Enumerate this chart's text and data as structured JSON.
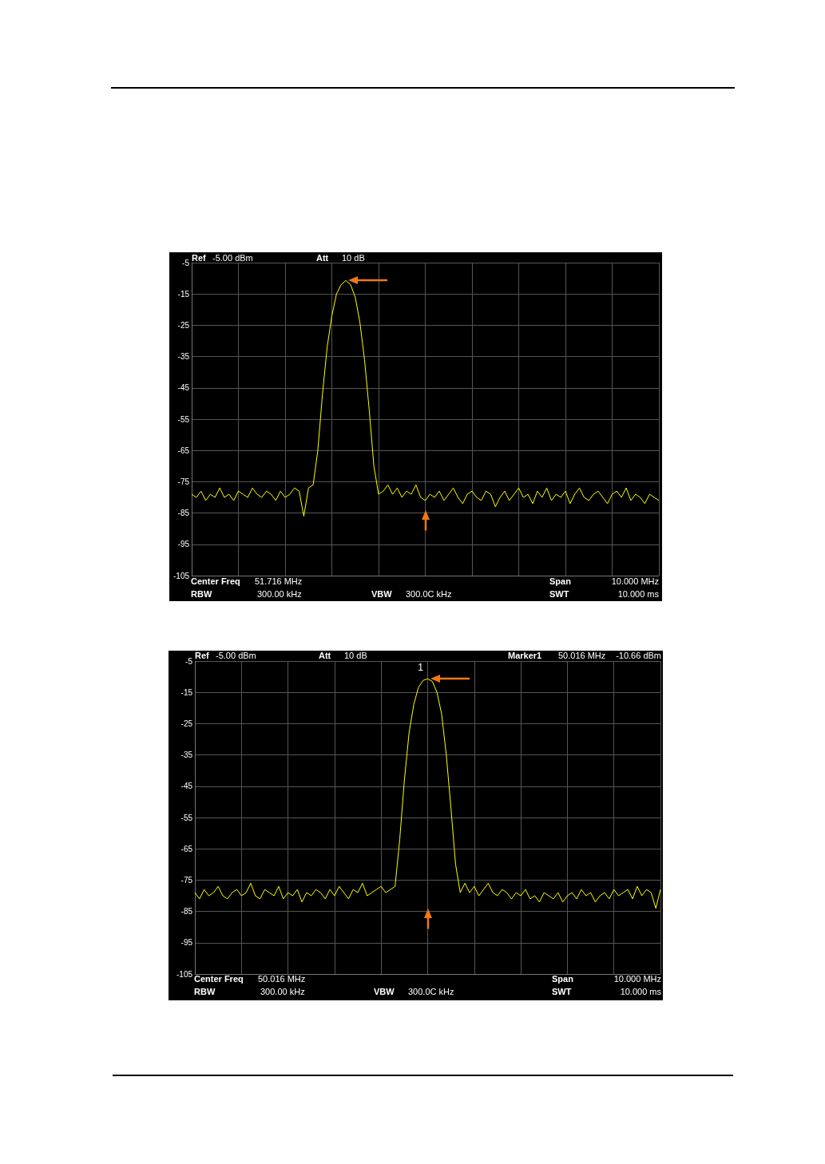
{
  "chart_data": [
    {
      "type": "line",
      "categories": [
        null,
        null,
        null,
        null,
        null,
        null,
        null,
        null,
        null,
        null,
        null,
        null,
        null,
        null,
        null,
        null,
        null,
        null,
        null,
        null,
        null,
        null,
        null,
        null,
        null,
        null,
        null,
        null,
        null,
        null,
        null,
        null,
        null,
        null,
        null,
        null,
        null,
        null,
        null,
        null,
        null,
        null,
        null,
        null,
        null,
        null,
        null,
        null,
        null,
        null,
        null,
        null,
        null,
        null,
        null,
        null,
        null,
        null,
        null,
        null,
        null,
        null,
        null,
        null,
        null,
        null,
        null,
        null,
        null,
        null,
        null,
        null,
        null,
        null,
        null,
        null,
        null,
        null,
        null,
        null,
        null,
        null,
        null,
        null,
        null,
        null,
        null,
        null,
        null,
        null,
        null,
        null,
        null,
        null,
        null,
        null,
        null,
        null,
        null,
        null,
        null
      ],
      "series": [
        {
          "color": "#ffff00",
          "values": [
            -79,
            -80,
            -78,
            -81,
            -79,
            -80,
            -77,
            -80,
            -79,
            -81,
            -78,
            -79,
            -80,
            -77,
            -79,
            -80,
            -78,
            -79,
            -81,
            -78,
            -80,
            -79,
            -77,
            -78,
            -86,
            -77,
            -76,
            -65,
            -47,
            -32,
            -22,
            -15,
            -12,
            -10.7,
            -12,
            -16,
            -24,
            -36,
            -52,
            -70,
            -79,
            -78,
            -76,
            -79,
            -77,
            -80,
            -78,
            -79,
            -76,
            -80,
            -81,
            -79,
            -80,
            -78,
            -81,
            -79,
            -77,
            -80,
            -82,
            -79,
            -78,
            -80,
            -81,
            -78,
            -79,
            -83,
            -80,
            -78,
            -81,
            -79,
            -77,
            -80,
            -79,
            -82,
            -78,
            -80,
            -77,
            -81,
            -79,
            -80,
            -78,
            -82,
            -79,
            -77,
            -80,
            -81,
            -79,
            -78,
            -80,
            -82,
            -79,
            -78,
            -80,
            -77,
            -81,
            -79,
            -80,
            -82,
            -79,
            -80,
            -81
          ]
        }
      ],
      "ylim": [
        -105,
        -5
      ],
      "yticks": [
        -5,
        -15,
        -25,
        -35,
        -45,
        -55,
        -65,
        -75,
        -85,
        -95,
        -105
      ],
      "grid": true,
      "annotations": [
        "Ref",
        "-5.00 dBm",
        "Att",
        "10 dB",
        "Center Freq",
        "51.716 MHz",
        "Span",
        "10.000 MHz",
        "RBW",
        "300.00 kHz",
        "VBW",
        "300.0C kHz",
        "SWT",
        "10.000 ms"
      ]
    },
    {
      "type": "line",
      "categories": [
        null,
        null,
        null,
        null,
        null,
        null,
        null,
        null,
        null,
        null,
        null,
        null,
        null,
        null,
        null,
        null,
        null,
        null,
        null,
        null,
        null,
        null,
        null,
        null,
        null,
        null,
        null,
        null,
        null,
        null,
        null,
        null,
        null,
        null,
        null,
        null,
        null,
        null,
        null,
        null,
        null,
        null,
        null,
        null,
        null,
        null,
        null,
        null,
        null,
        null,
        null,
        null,
        null,
        null,
        null,
        null,
        null,
        null,
        null,
        null,
        null,
        null,
        null,
        null,
        null,
        null,
        null,
        null,
        null,
        null,
        null,
        null,
        null,
        null,
        null,
        null,
        null,
        null,
        null,
        null,
        null,
        null,
        null,
        null,
        null,
        null,
        null,
        null,
        null,
        null,
        null,
        null,
        null,
        null,
        null,
        null,
        null,
        null,
        null,
        null,
        null
      ],
      "series": [
        {
          "color": "#ffff00",
          "values": [
            -79,
            -81,
            -78,
            -80,
            -79,
            -77,
            -80,
            -81,
            -79,
            -78,
            -80,
            -79,
            -76,
            -80,
            -81,
            -78,
            -79,
            -80,
            -77,
            -81,
            -79,
            -80,
            -78,
            -82,
            -79,
            -80,
            -78,
            -79,
            -81,
            -78,
            -80,
            -77,
            -79,
            -81,
            -78,
            -79,
            -76,
            -80,
            -79,
            -78,
            -77,
            -79,
            -78,
            -77,
            -62,
            -43,
            -28,
            -19,
            -13.5,
            -11.2,
            -10.66,
            -11.5,
            -15,
            -22,
            -35,
            -52,
            -70,
            -79,
            -76,
            -79,
            -77,
            -80,
            -78,
            -76,
            -79,
            -80,
            -78,
            -79,
            -81,
            -79,
            -80,
            -78,
            -81,
            -80,
            -82,
            -79,
            -80,
            -81,
            -79,
            -82,
            -80,
            -79,
            -81,
            -78,
            -80,
            -79,
            -82,
            -80,
            -79,
            -81,
            -78,
            -80,
            -79,
            -78,
            -81,
            -77,
            -80,
            -78,
            -79,
            -84,
            -78
          ]
        }
      ],
      "ylim": [
        -105,
        -5
      ],
      "yticks": [
        -5,
        -15,
        -25,
        -35,
        -45,
        -55,
        -65,
        -75,
        -85,
        -95,
        -105
      ],
      "grid": true,
      "annotations": [
        "Ref",
        "-5.00 dBm",
        "Att",
        "10 dB",
        "Marker1",
        "50.016 MHz",
        "-10.66 dBm",
        "Center Freq",
        "50.016 MHz",
        "Span",
        "10.000 MHz",
        "RBW",
        "300.00 kHz",
        "VBW",
        "300.0C kHz",
        "SWT",
        "10.000 ms",
        {
          "text": "1",
          "y": -10.66
        }
      ]
    }
  ]
}
